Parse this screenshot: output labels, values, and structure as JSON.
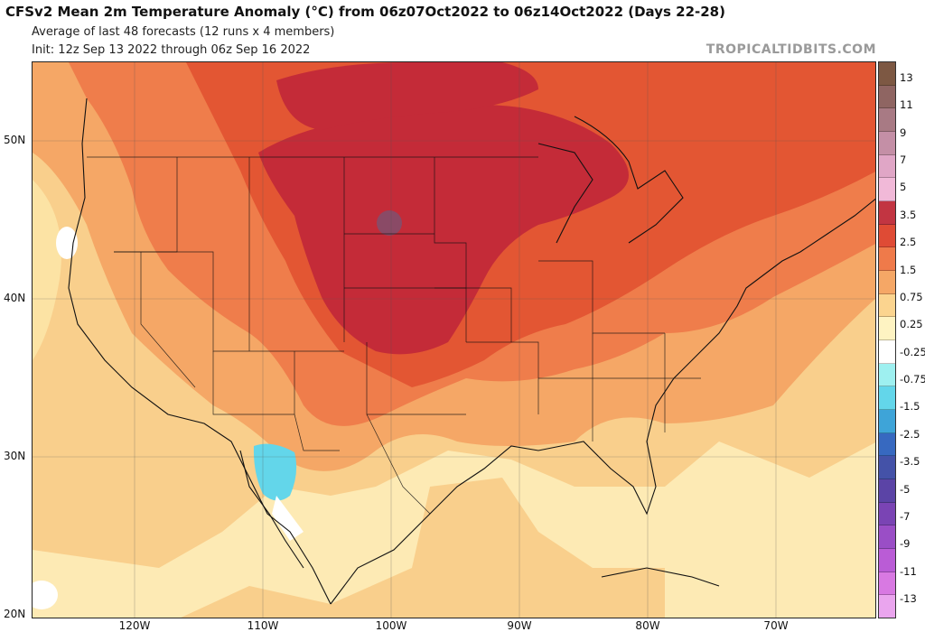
{
  "header": {
    "title": "CFSv2 Mean 2m Temperature Anomaly (°C) from 06z07Oct2022 to 06z14Oct2022 (Days 22-28)",
    "subtitle": "Average of last 48 forecasts (12 runs x 4 members)",
    "init": "Init: 12z Sep 13 2022 through 06z Sep 16 2022",
    "credit": "TROPICALTIDBITS.COM"
  },
  "map": {
    "lat_labels": [
      "50N",
      "40N",
      "30N",
      "20N"
    ],
    "lon_labels": [
      "120W",
      "110W",
      "100W",
      "90W",
      "80W",
      "70W"
    ],
    "region": "Continental United States, southern Canada, northern Mexico, Gulf of Mexico"
  },
  "colorbar": {
    "labels": [
      "13",
      "11",
      "9",
      "7",
      "5",
      "3.5",
      "2.5",
      "1.5",
      "0.75",
      "0.25",
      "-0.25",
      "-0.75",
      "-1.5",
      "-2.5",
      "-3.5",
      "-5",
      "-7",
      "-9",
      "-11",
      "-13"
    ],
    "colors": [
      "#7d5843",
      "#8f6562",
      "#a87a84",
      "#c48fa6",
      "#e0a6c6",
      "#f1b9d8",
      "#c23542",
      "#df4b35",
      "#ef7a4a",
      "#f5a766",
      "#fbd48f",
      "#fef3c2",
      "#ffffff",
      "#9ef0f0",
      "#63d6ea",
      "#3ea4d8",
      "#3769c0",
      "#4452a8",
      "#5b44a6",
      "#7a44b4",
      "#9a4ec6",
      "#ba5cd6",
      "#d879e2",
      "#eaa5ee"
    ]
  },
  "colors": {
    "strong_warm": "#c42b38",
    "warm": "#e35633",
    "moderate_warm": "#ef7d4b",
    "mild_warm": "#f5a766",
    "slight_warm": "#fbd48f",
    "near_normal": "#fef3c2",
    "cool": "#63d6ea"
  }
}
